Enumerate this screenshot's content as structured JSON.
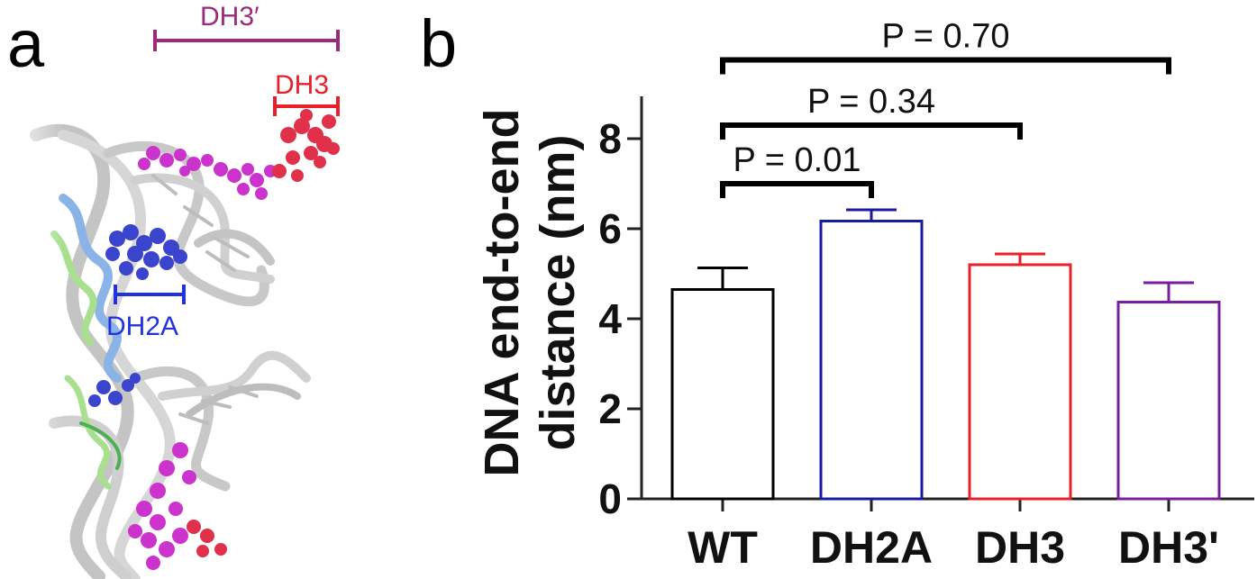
{
  "panel_a": {
    "letter": "a",
    "labels": [
      {
        "text": "DH3′",
        "color": "#9b2a7a"
      },
      {
        "text": "DH3",
        "color": "#e8202a"
      },
      {
        "text": "DH2A",
        "color": "#2233dd"
      }
    ],
    "colors": {
      "dna": "#c8c8c8",
      "dh2a_atoms": "#3a44cc",
      "dh3_prime_atoms": "#cc33cc",
      "dh3_atoms": "#e0304a",
      "protein_blue": "#8ab4e8",
      "protein_green": "#a8e090"
    }
  },
  "panel_b": {
    "letter": "b"
  },
  "chart_data": {
    "type": "bar",
    "categories": [
      "WT",
      "DH2A",
      "DH3",
      "DH3'"
    ],
    "values": [
      4.65,
      6.17,
      5.2,
      4.37
    ],
    "errors": [
      0.48,
      0.25,
      0.24,
      0.43
    ],
    "bar_colors": [
      "#000000",
      "#1a1aa0",
      "#e8202a",
      "#7a1ea0"
    ],
    "title": "",
    "xlabel": "",
    "ylabel_lines": [
      "DNA end-to-end",
      "distance (nm)"
    ],
    "ylim": [
      0,
      9
    ],
    "yticks": [
      0,
      2,
      4,
      6,
      8
    ],
    "grid": false,
    "comparisons": [
      {
        "from": 0,
        "to": 1,
        "label": "P = 0.01",
        "y": 7.0
      },
      {
        "from": 0,
        "to": 2,
        "label": "P = 0.34",
        "y": 8.3
      },
      {
        "from": 0,
        "to": 3,
        "label": "P = 0.70",
        "y": 9.75
      }
    ]
  }
}
